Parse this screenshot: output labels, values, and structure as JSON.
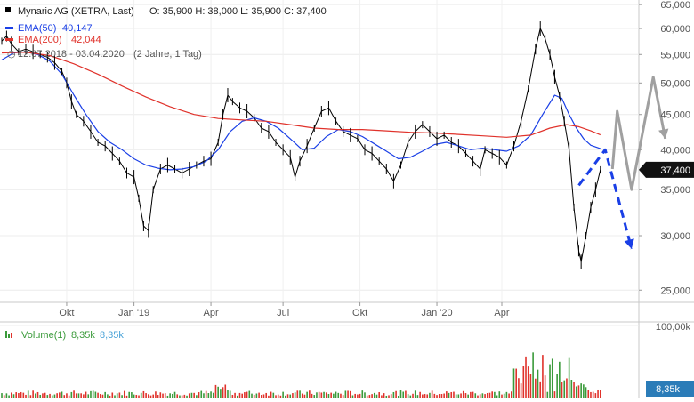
{
  "chart_data": [
    {
      "type": "candlestick-line",
      "title": "Mynaric AG (XETRA, Last)",
      "ohlc_label": {
        "O": "35,900",
        "H": "38,000",
        "L": "35,900",
        "C": "37,400"
      },
      "legend": [
        {
          "name": "EMA(50)",
          "value": "40,147",
          "color": "#1a3fe6"
        },
        {
          "name": "EMA(200)",
          "value": "42,044",
          "color": "#e0322b"
        }
      ],
      "period_label": "12.07.2018 - 03.04.2020",
      "period_extra": "(2 Jahre, 1 Tag)",
      "y_scale": "log",
      "ylim": [
        24000,
        66000
      ],
      "y_ticks": [
        25000,
        30000,
        35000,
        40000,
        45000,
        50000,
        55000,
        60000,
        65000
      ],
      "y_tick_labels": [
        "25,000",
        "30,000",
        "35,000",
        "40,000",
        "45,000",
        "50,000",
        "55,000",
        "60,000",
        "65,000"
      ],
      "last_price_label": "37,400",
      "x_tick_labels": [
        "Okt",
        "Jan '19",
        "Apr",
        "Jul",
        "Okt",
        "Jan '20",
        "Apr"
      ],
      "grid": true,
      "legend_position": "top-left",
      "series": [
        {
          "name": "Price",
          "color": "#000000",
          "points": [
            [
              0,
              57500
            ],
            [
              2,
              58500
            ],
            [
              4,
              57000
            ],
            [
              7,
              55500
            ],
            [
              10,
              56000
            ],
            [
              13,
              55500
            ],
            [
              16,
              55000
            ],
            [
              19,
              54500
            ],
            [
              22,
              53500
            ],
            [
              25,
              52000
            ],
            [
              27,
              50000
            ],
            [
              29,
              47000
            ],
            [
              31,
              45000
            ],
            [
              34,
              44000
            ],
            [
              37,
              42500
            ],
            [
              40,
              41000
            ],
            [
              43,
              40500
            ],
            [
              46,
              39500
            ],
            [
              49,
              38500
            ],
            [
              52,
              37000
            ],
            [
              55,
              36500
            ],
            [
              57,
              34000
            ],
            [
              59,
              31000
            ],
            [
              61,
              30500
            ],
            [
              63,
              35000
            ],
            [
              66,
              37500
            ],
            [
              69,
              38000
            ],
            [
              72,
              37500
            ],
            [
              75,
              37000
            ],
            [
              78,
              37500
            ],
            [
              81,
              38000
            ],
            [
              84,
              38500
            ],
            [
              87,
              38800
            ],
            [
              90,
              41000
            ],
            [
              92,
              45000
            ],
            [
              94,
              48000
            ],
            [
              96,
              47000
            ],
            [
              99,
              46000
            ],
            [
              102,
              45500
            ],
            [
              105,
              44500
            ],
            [
              108,
              43000
            ],
            [
              111,
              42500
            ],
            [
              114,
              41000
            ],
            [
              117,
              40000
            ],
            [
              120,
              39000
            ],
            [
              122,
              36500
            ],
            [
              124,
              38500
            ],
            [
              127,
              40500
            ],
            [
              130,
              43000
            ],
            [
              133,
              45500
            ],
            [
              136,
              46000
            ],
            [
              139,
              44000
            ],
            [
              142,
              42500
            ],
            [
              145,
              42000
            ],
            [
              148,
              41500
            ],
            [
              151,
              40000
            ],
            [
              154,
              39500
            ],
            [
              157,
              38500
            ],
            [
              160,
              37500
            ],
            [
              163,
              36000
            ],
            [
              166,
              38000
            ],
            [
              169,
              41000
            ],
            [
              172,
              42500
            ],
            [
              175,
              43500
            ],
            [
              178,
              42500
            ],
            [
              181,
              41500
            ],
            [
              184,
              42000
            ],
            [
              187,
              41000
            ],
            [
              190,
              40500
            ],
            [
              193,
              39500
            ],
            [
              196,
              38500
            ],
            [
              199,
              37500
            ],
            [
              201,
              40000
            ],
            [
              204,
              39500
            ],
            [
              207,
              39000
            ],
            [
              210,
              38000
            ],
            [
              213,
              40500
            ],
            [
              216,
              44000
            ],
            [
              219,
              49000
            ],
            [
              222,
              56000
            ],
            [
              224,
              60000
            ],
            [
              226,
              58000
            ],
            [
              228,
              55000
            ],
            [
              230,
              51000
            ],
            [
              232,
              48000
            ],
            [
              234,
              44000
            ],
            [
              236,
              40000
            ],
            [
              238,
              33000
            ],
            [
              240,
              28500
            ],
            [
              241,
              27500
            ],
            [
              243,
              30000
            ],
            [
              245,
              33000
            ],
            [
              247,
              35000
            ],
            [
              249,
              37400
            ]
          ]
        },
        {
          "name": "EMA(50)",
          "color": "#1a3fe6",
          "points": [
            [
              0,
              54000
            ],
            [
              5,
              55300
            ],
            [
              10,
              55500
            ],
            [
              15,
              55000
            ],
            [
              20,
              53800
            ],
            [
              25,
              51500
            ],
            [
              30,
              48000
            ],
            [
              35,
              45000
            ],
            [
              40,
              42500
            ],
            [
              45,
              41000
            ],
            [
              50,
              40000
            ],
            [
              55,
              38800
            ],
            [
              60,
              38000
            ],
            [
              65,
              37600
            ],
            [
              70,
              37400
            ],
            [
              75,
              37500
            ],
            [
              80,
              37800
            ],
            [
              85,
              38500
            ],
            [
              90,
              40000
            ],
            [
              95,
              42500
            ],
            [
              100,
              44000
            ],
            [
              105,
              44500
            ],
            [
              110,
              44000
            ],
            [
              115,
              43000
            ],
            [
              120,
              41500
            ],
            [
              125,
              40000
            ],
            [
              130,
              40200
            ],
            [
              135,
              41800
            ],
            [
              140,
              42800
            ],
            [
              145,
              42500
            ],
            [
              150,
              41800
            ],
            [
              155,
              40800
            ],
            [
              160,
              39800
            ],
            [
              165,
              38800
            ],
            [
              170,
              39000
            ],
            [
              175,
              39800
            ],
            [
              180,
              40700
            ],
            [
              185,
              41000
            ],
            [
              190,
              40500
            ],
            [
              195,
              40000
            ],
            [
              200,
              40200
            ],
            [
              205,
              40000
            ],
            [
              210,
              39800
            ],
            [
              215,
              40500
            ],
            [
              220,
              42000
            ],
            [
              225,
              45000
            ],
            [
              230,
              48000
            ],
            [
              233,
              47500
            ],
            [
              236,
              45000
            ],
            [
              239,
              43000
            ],
            [
              242,
              41500
            ],
            [
              245,
              40600
            ],
            [
              249,
              40147
            ]
          ]
        },
        {
          "name": "EMA(200)",
          "color": "#e0322b",
          "points": [
            [
              0,
              55300
            ],
            [
              10,
              55400
            ],
            [
              20,
              54800
            ],
            [
              30,
              53300
            ],
            [
              40,
              51500
            ],
            [
              50,
              49500
            ],
            [
              60,
              47700
            ],
            [
              70,
              46200
            ],
            [
              80,
              45000
            ],
            [
              90,
              44400
            ],
            [
              100,
              44200
            ],
            [
              110,
              44000
            ],
            [
              120,
              43500
            ],
            [
              130,
              43000
            ],
            [
              140,
              42800
            ],
            [
              150,
              42800
            ],
            [
              160,
              42600
            ],
            [
              170,
              42400
            ],
            [
              180,
              42300
            ],
            [
              190,
              42100
            ],
            [
              200,
              41900
            ],
            [
              210,
              41700
            ],
            [
              220,
              42000
            ],
            [
              228,
              43000
            ],
            [
              235,
              43500
            ],
            [
              240,
              43200
            ],
            [
              245,
              42600
            ],
            [
              249,
              42044
            ]
          ]
        }
      ],
      "annotations": [
        {
          "type": "arrow",
          "color": "#a0a0a0",
          "points": [
            [
              254,
              37500
            ],
            [
              256,
              45500
            ],
            [
              262,
              35000
            ],
            [
              271,
              51000
            ],
            [
              276,
              41500
            ]
          ]
        },
        {
          "type": "dashed-arrow",
          "color": "#1a3fe6",
          "points": [
            [
              240,
              35500
            ],
            [
              251,
              40000
            ],
            [
              262,
              28700
            ]
          ]
        }
      ]
    },
    {
      "type": "bar",
      "title": "Volume(1)",
      "legend": [
        {
          "name": "Volume(1)",
          "color": "#3a9a3a"
        },
        {
          "name": "8,35k",
          "color": "#3a9a3a"
        },
        {
          "name": "8,35k",
          "color": "#4aa3d8"
        }
      ],
      "ylim": [
        0,
        100000
      ],
      "y_tick_labels": [
        "100,00k"
      ],
      "last_value_label": "8,35k",
      "values_hint": "daily volume, mostly 1k-4k, spike up to ~85k in Feb/Mar 2020"
    }
  ]
}
